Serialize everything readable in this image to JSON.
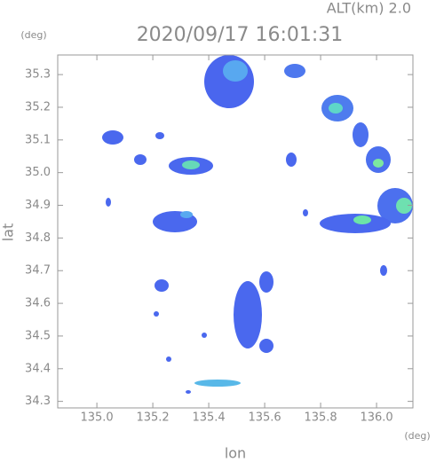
{
  "chart_data": {
    "type": "radar-map",
    "title": "2020/09/17 16:01:31",
    "altitude_label": "ALT(km) 2.0",
    "y_unit": "(deg)",
    "x_unit": "(deg)",
    "xlabel": "lon",
    "ylabel": "lat",
    "xlim": [
      134.86,
      136.13
    ],
    "ylim": [
      34.28,
      35.36
    ],
    "xticks": [
      {
        "value": 135.0,
        "label": "135.0"
      },
      135.2,
      135.4,
      135.6,
      135.8,
      {
        "value": 136.0,
        "label": "136.0"
      }
    ],
    "yticks": [
      34.3,
      34.4,
      34.5,
      34.6,
      34.7,
      34.8,
      34.9,
      {
        "value": 35.0,
        "label": "35.0"
      },
      35.1,
      35.2,
      35.3
    ]
  }
}
